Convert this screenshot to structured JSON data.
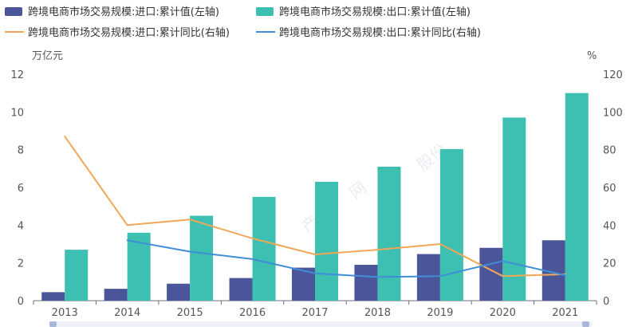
{
  "chart_data": {
    "type": "bar",
    "categories": [
      "2013",
      "2014",
      "2015",
      "2016",
      "2017",
      "2018",
      "2019",
      "2020",
      "2021"
    ],
    "left_axis": {
      "unit": "万亿元",
      "ylim": [
        0,
        12
      ],
      "ticks": [
        "0",
        "2",
        "4",
        "6",
        "8",
        "10",
        "12"
      ]
    },
    "right_axis": {
      "unit": "%",
      "ylim": [
        0,
        120
      ],
      "ticks": [
        "0",
        "20",
        "40",
        "60",
        "80",
        "100",
        "120"
      ]
    },
    "series": [
      {
        "name": "跨境电商市场交易规模:进口:累计值(左轴)",
        "kind": "bar",
        "axis": "left",
        "color": "#4a5699",
        "values": [
          0.45,
          0.63,
          0.9,
          1.2,
          1.75,
          1.9,
          2.47,
          2.8,
          3.2
        ]
      },
      {
        "name": "跨境电商市场交易规模:出口:累计值(左轴)",
        "kind": "bar",
        "axis": "left",
        "color": "#3dbfb1",
        "values": [
          2.7,
          3.6,
          4.5,
          5.5,
          6.3,
          7.1,
          8.03,
          9.7,
          11.0
        ]
      },
      {
        "name": "跨境电商市场交易规模:进口:累计同比(右轴)",
        "kind": "line",
        "axis": "right",
        "color": "#f0a858",
        "values": [
          87,
          40,
          43,
          33,
          24.5,
          27,
          30,
          13,
          14
        ]
      },
      {
        "name": "跨境电商市场交易规模:出口:累计同比(右轴)",
        "kind": "line",
        "axis": "right",
        "color": "#3f8ed8",
        "values": [
          null,
          32,
          26,
          22,
          14.5,
          12.5,
          13,
          21,
          13.5
        ]
      }
    ],
    "grid": false,
    "legend_position": "top"
  }
}
